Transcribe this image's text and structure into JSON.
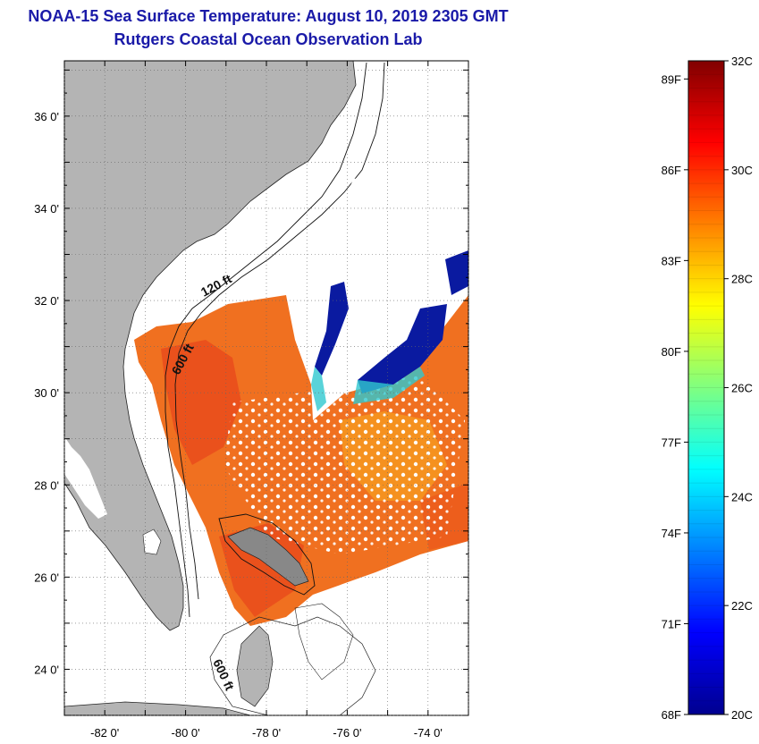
{
  "title": {
    "line1": "NOAA-15 Sea Surface Temperature:  August 10, 2019 2305 GMT",
    "line2": "Rutgers Coastal Ocean Observation Lab"
  },
  "map": {
    "lat_ticks": [
      {
        "value": 36,
        "label": "36 0'"
      },
      {
        "value": 34,
        "label": "34 0'"
      },
      {
        "value": 32,
        "label": "32 0'"
      },
      {
        "value": 30,
        "label": "30 0'"
      },
      {
        "value": 28,
        "label": "28 0'"
      },
      {
        "value": 26,
        "label": "26 0'"
      },
      {
        "value": 24,
        "label": "24 0'"
      }
    ],
    "lon_ticks": [
      {
        "value": -82,
        "label": "-82 0'"
      },
      {
        "value": -80,
        "label": "-80 0'"
      },
      {
        "value": -78,
        "label": "-78 0'"
      },
      {
        "value": -76,
        "label": "-76 0'"
      },
      {
        "value": -74,
        "label": "-74 0'"
      }
    ],
    "lat_range": [
      23,
      37.2
    ],
    "lon_range": [
      -83,
      -73
    ],
    "contour_labels": {
      "shelf_120": "120 ft",
      "shelf_600": "600 ft",
      "bahamas_600": "600 ft"
    }
  },
  "colorbar": {
    "min_c": 20,
    "max_c": 32,
    "celsius_labels": [
      "32C",
      "30C",
      "28C",
      "26C",
      "24C",
      "22C",
      "20C"
    ],
    "fahrenheit_labels": [
      "89F",
      "86F",
      "83F",
      "80F",
      "77F",
      "74F",
      "71F",
      "68F"
    ],
    "colors": [
      "#00008f",
      "#0000ff",
      "#0080ff",
      "#00ffff",
      "#80ff80",
      "#ffff00",
      "#ff8000",
      "#ff0000",
      "#800000"
    ]
  },
  "colors": {
    "land": "#b4b4b4",
    "warm": "#f07020",
    "hot": "#e84a1c",
    "cool": "#0a1aa0",
    "title": "#1a1aa8"
  }
}
